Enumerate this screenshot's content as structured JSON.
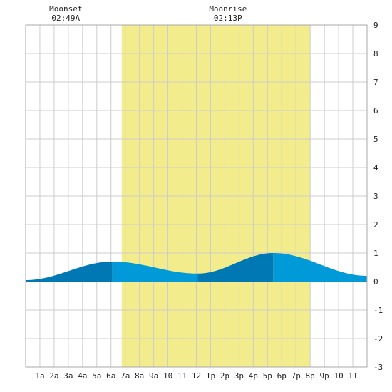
{
  "chart_data": {
    "type": "area",
    "title": "",
    "xlabel": "",
    "ylabel": "",
    "xlim": [
      0,
      24
    ],
    "ylim": [
      -3,
      9
    ],
    "y_ticks": [
      -3,
      -2,
      -1,
      0,
      1,
      2,
      3,
      4,
      5,
      6,
      7,
      8,
      9
    ],
    "x_tick_labels": [
      "1a",
      "2a",
      "3a",
      "4a",
      "5a",
      "6a",
      "7a",
      "8a",
      "9a",
      "10",
      "11",
      "12",
      "1p",
      "2p",
      "3p",
      "4p",
      "5p",
      "6p",
      "7p",
      "8p",
      "9p",
      "10",
      "11"
    ],
    "grid": true,
    "daylight": {
      "start_hour": 6.75,
      "end_hour": 20.0
    },
    "moon_events": [
      {
        "label": "Moonset",
        "time": "02:49A",
        "hour": 2.82
      },
      {
        "label": "Moonrise",
        "time": "02:13P",
        "hour": 14.22
      }
    ],
    "tide_extremes": [
      {
        "hour": 0.0,
        "height": 0.05
      },
      {
        "hour": 6.1,
        "height": 0.7
      },
      {
        "hour": 12.1,
        "height": 0.28
      },
      {
        "hour": 17.4,
        "height": 1.0
      },
      {
        "hour": 24.0,
        "height": 0.2
      }
    ],
    "colors": {
      "background": "#ffffff",
      "grid": "#cccccc",
      "daylight": "#f3ec8c",
      "tide_light": "#009ad9",
      "tide_dark": "#0078b4",
      "text": "#222222"
    }
  }
}
